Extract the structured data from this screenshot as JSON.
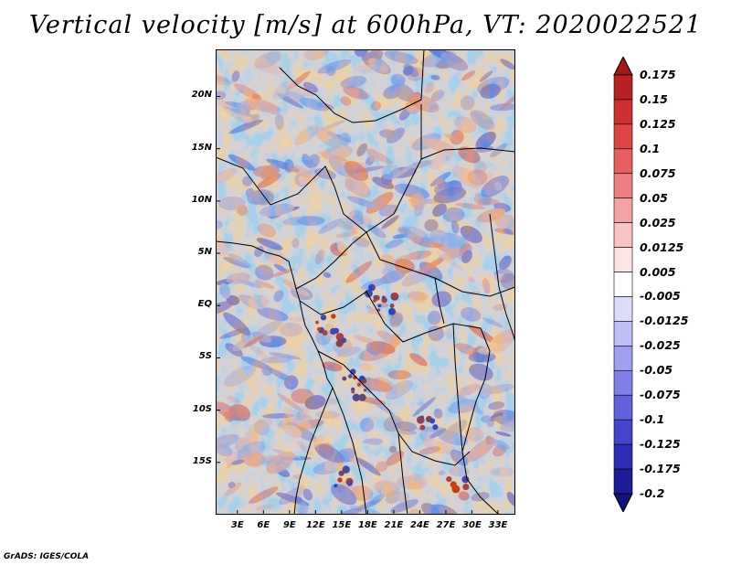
{
  "figure": {
    "title": "Vertical velocity [m/s] at 600hPa, VT: 2020022521",
    "variable": "Vertical velocity",
    "units": "m/s",
    "level": "600hPa",
    "valid_time": "2020022521",
    "footer": "GrADS: IGES/COLA"
  },
  "map": {
    "lat_labels": [
      "20N",
      "15N",
      "10N",
      "5N",
      "EQ",
      "5S",
      "10S",
      "15S"
    ],
    "lat_values": [
      20,
      15,
      10,
      5,
      0,
      -5,
      -10,
      -15
    ],
    "lon_labels": [
      "3E",
      "6E",
      "9E",
      "12E",
      "15E",
      "18E",
      "21E",
      "24E",
      "27E",
      "30E",
      "33E"
    ],
    "lon_values": [
      3,
      6,
      9,
      12,
      15,
      18,
      21,
      24,
      27,
      30,
      33
    ],
    "lat_range": [
      -20,
      24.5
    ],
    "lon_range": [
      0.5,
      35
    ]
  },
  "colorbar": {
    "labels": [
      "0.175",
      "0.15",
      "0.125",
      "0.1",
      "0.075",
      "0.05",
      "0.025",
      "0.0125",
      "0.005",
      "-0.005",
      "-0.0125",
      "-0.025",
      "-0.05",
      "-0.075",
      "-0.1",
      "-0.125",
      "-0.175",
      "-0.2"
    ],
    "colors": [
      "#a01818",
      "#b82222",
      "#cc3030",
      "#dd4545",
      "#e66060",
      "#ec8080",
      "#f3a3a3",
      "#f8c5c5",
      "#fce4e4",
      "#ffffff",
      "#dcdcfa",
      "#c0c0f4",
      "#a0a0ee",
      "#8080e6",
      "#6262dc",
      "#4545cc",
      "#2d2db4",
      "#1c1c96",
      "#12127a"
    ]
  }
}
